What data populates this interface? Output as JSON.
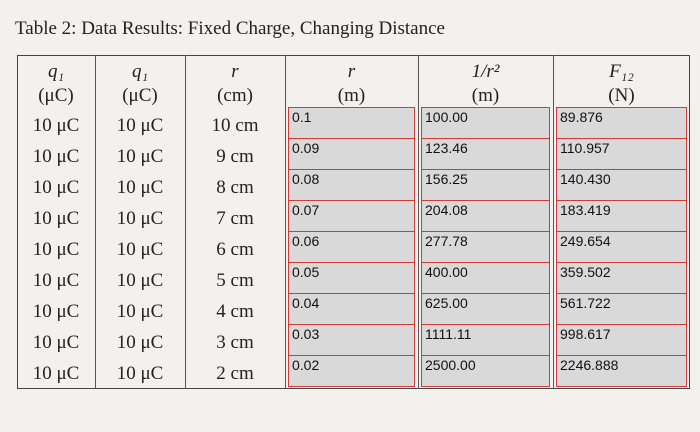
{
  "title": "Table 2: Data Results: Fixed Charge, Changing Distance",
  "table": {
    "header": [
      [
        "q₁",
        "(μC)"
      ],
      [
        "q₁",
        "(μC)"
      ],
      [
        "r",
        "(cm)"
      ],
      [
        "r",
        "(m)"
      ],
      [
        "1/r²",
        "(m)"
      ],
      [
        "F₁₂",
        "(N)"
      ]
    ],
    "rows": [
      [
        "10 μC",
        "10 μC",
        "10 cm",
        "0.1",
        "100.00",
        "89.876"
      ],
      [
        "10 μC",
        "10 μC",
        "9 cm",
        "0.09",
        "123.46",
        "110.957"
      ],
      [
        "10 μC",
        "10 μC",
        "8 cm",
        "0.08",
        "156.25",
        "140.430"
      ],
      [
        "10 μC",
        "10 μC",
        "7 cm",
        "0.07",
        "204.08",
        "183.419"
      ],
      [
        "10 μC",
        "10 μC",
        "6 cm",
        "0.06",
        "277.78",
        "249.654"
      ],
      [
        "10 μC",
        "10 μC",
        "5 cm",
        "0.05",
        "400.00",
        "359.502"
      ],
      [
        "10 μC",
        "10 μC",
        "4 cm",
        "0.04",
        "625.00",
        "561.722"
      ],
      [
        "10 μC",
        "10 μC",
        "3 cm",
        "0.03",
        "1111.11",
        "998.617"
      ],
      [
        "10 μC",
        "10 μC",
        "2 cm",
        "0.02",
        "2500.00",
        "2246.888"
      ]
    ]
  }
}
